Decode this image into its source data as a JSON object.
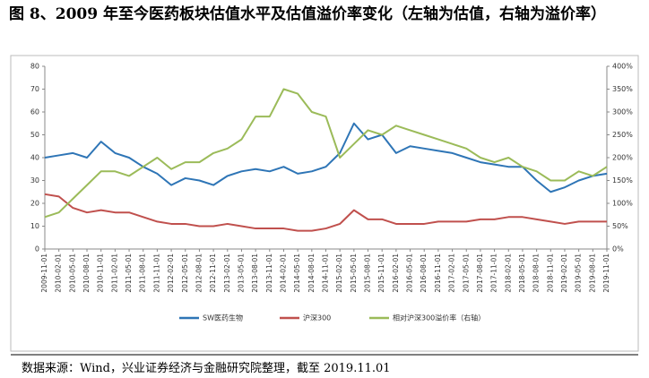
{
  "chart_data": {
    "type": "line",
    "title": "图 8、2009 年至今医药板块估值水平及估值溢价率变化（左轴为估值，右轴为溢价率）",
    "source": "数据来源：Wind，兴业证券经济与金融研究院整理，截至 2019.11.01",
    "categories": [
      "2009-11-01",
      "2010-02-01",
      "2010-05-01",
      "2010-08-01",
      "2010-11-01",
      "2011-02-01",
      "2011-05-01",
      "2011-08-01",
      "2011-11-01",
      "2012-02-01",
      "2012-05-01",
      "2012-08-01",
      "2012-11-01",
      "2013-02-01",
      "2013-05-01",
      "2013-08-01",
      "2013-11-01",
      "2014-02-01",
      "2014-05-01",
      "2014-08-01",
      "2014-11-01",
      "2015-02-01",
      "2015-05-01",
      "2015-08-01",
      "2015-11-01",
      "2016-02-01",
      "2016-05-01",
      "2016-08-01",
      "2016-11-01",
      "2017-02-01",
      "2017-05-01",
      "2017-08-01",
      "2017-11-01",
      "2018-02-01",
      "2018-05-01",
      "2018-08-01",
      "2018-11-01",
      "2019-02-01",
      "2019-05-01",
      "2019-08-01",
      "2019-11-01"
    ],
    "series": [
      {
        "name": "SW医药生物",
        "color": "#2e75b6",
        "values": [
          40,
          41,
          42,
          40,
          47,
          42,
          40,
          36,
          33,
          28,
          31,
          30,
          28,
          32,
          34,
          35,
          34,
          36,
          33,
          34,
          36,
          42,
          55,
          48,
          50,
          42,
          45,
          44,
          43,
          42,
          40,
          38,
          37,
          36,
          36,
          30,
          25,
          27,
          30,
          32,
          33
        ]
      },
      {
        "name": "沪深300",
        "color": "#c0504d",
        "values": [
          24,
          23,
          18,
          16,
          17,
          16,
          16,
          14,
          12,
          11,
          11,
          10,
          10,
          11,
          10,
          9,
          9,
          9,
          8,
          8,
          9,
          11,
          17,
          13,
          13,
          11,
          11,
          11,
          12,
          12,
          12,
          13,
          13,
          14,
          14,
          13,
          12,
          11,
          12,
          12,
          12
        ]
      },
      {
        "name": "相对沪深300溢价率（右轴）",
        "color": "#9bbb59",
        "axis": "y2",
        "values": [
          70,
          80,
          110,
          140,
          170,
          170,
          160,
          180,
          200,
          175,
          190,
          190,
          210,
          220,
          240,
          290,
          290,
          350,
          340,
          300,
          290,
          200,
          230,
          260,
          250,
          270,
          260,
          250,
          240,
          230,
          220,
          200,
          190,
          200,
          180,
          170,
          150,
          150,
          170,
          160,
          180
        ]
      }
    ],
    "ylim": [
      0,
      80
    ],
    "yticks": [
      0,
      10,
      20,
      30,
      40,
      50,
      60,
      70,
      80
    ],
    "y2lim": [
      0,
      400
    ],
    "y2ticks": [
      {
        "value": 0,
        "label": "0%"
      },
      {
        "value": 50,
        "label": "50%"
      },
      {
        "value": 100,
        "label": "100%"
      },
      {
        "value": 150,
        "label": "150%"
      },
      {
        "value": 200,
        "label": "200%"
      },
      {
        "value": 250,
        "label": "250%"
      },
      {
        "value": 300,
        "label": "300%"
      },
      {
        "value": 350,
        "label": "350%"
      },
      {
        "value": 400,
        "label": "400%"
      }
    ],
    "grid": false,
    "legend": "bottom"
  }
}
